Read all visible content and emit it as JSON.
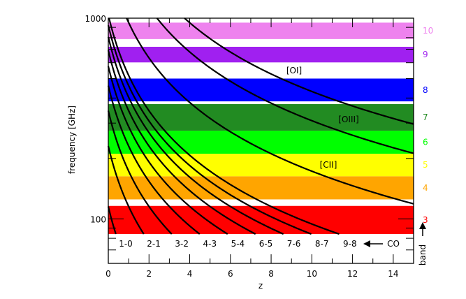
{
  "chart_data": {
    "type": "line",
    "xlabel": "z",
    "ylabel": "frequency [GHz]",
    "xlim": [
      0,
      15
    ],
    "ylim": [
      60,
      1000
    ],
    "y_scale": "log",
    "x_ticks": [
      0,
      2,
      4,
      6,
      8,
      10,
      12,
      14
    ],
    "y_tick_labels": [
      100,
      1000
    ],
    "band_axis_label": "band",
    "bands": [
      {
        "name": "3",
        "range": [
          84,
          116
        ],
        "color": "#FF0000"
      },
      {
        "name": "4",
        "range": [
          125,
          163
        ],
        "color": "#FFA500"
      },
      {
        "name": "5",
        "range": [
          163,
          211
        ],
        "color": "#FFFF00"
      },
      {
        "name": "6",
        "range": [
          211,
          275
        ],
        "color": "#00FF00"
      },
      {
        "name": "7",
        "range": [
          275,
          373
        ],
        "color": "#228B22"
      },
      {
        "name": "8",
        "range": [
          385,
          500
        ],
        "color": "#0000FF"
      },
      {
        "name": "9",
        "range": [
          602,
          720
        ],
        "color": "#A020F0"
      },
      {
        "name": "10",
        "range": [
          787,
          950
        ],
        "color": "#EE82EE"
      }
    ],
    "co_label": "CO",
    "series": [
      {
        "name": "1-0",
        "rest_freq_ghz": 115.27
      },
      {
        "name": "2-1",
        "rest_freq_ghz": 230.54
      },
      {
        "name": "3-2",
        "rest_freq_ghz": 345.8
      },
      {
        "name": "4-3",
        "rest_freq_ghz": 461.04
      },
      {
        "name": "5-4",
        "rest_freq_ghz": 576.27
      },
      {
        "name": "6-5",
        "rest_freq_ghz": 691.47
      },
      {
        "name": "7-6",
        "rest_freq_ghz": 806.65
      },
      {
        "name": "8-7",
        "rest_freq_ghz": 921.8
      },
      {
        "name": "9-8",
        "rest_freq_ghz": 1036.91
      },
      {
        "name": "[CII]",
        "rest_freq_ghz": 1900.54
      },
      {
        "name": "[OIII]",
        "rest_freq_ghz": 3393.01
      },
      {
        "name": "[OI]",
        "rest_freq_ghz": 4744.78
      }
    ]
  }
}
